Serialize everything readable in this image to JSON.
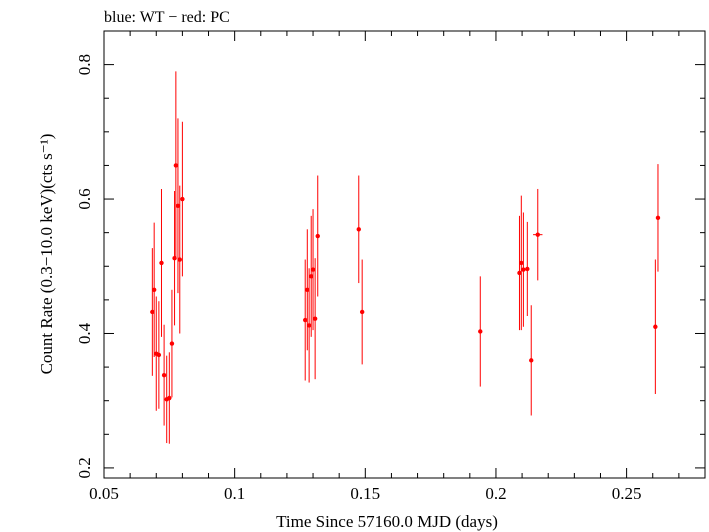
{
  "chart_data": {
    "type": "scatter",
    "title": "blue: WT − red: PC",
    "xlabel": "Time Since 57160.0 MJD (days)",
    "ylabel": "Count Rate (0.3−10.0 keV)(cts s⁻¹)",
    "xlim": [
      0.05,
      0.28
    ],
    "ylim": [
      0.185,
      0.85
    ],
    "xticks": [
      0.05,
      0.1,
      0.15,
      0.2,
      0.25
    ],
    "xtick_labels": [
      "0.05",
      "0.1",
      "0.15",
      "0.2",
      "0.25"
    ],
    "yticks": [
      0.2,
      0.4,
      0.6,
      0.8
    ],
    "ytick_labels": [
      "0.2",
      "0.4",
      "0.6",
      "0.8"
    ],
    "grid": false,
    "series": [
      {
        "color": "#ff0000",
        "points": [
          {
            "x": 0.0685,
            "y": 0.432,
            "yerr": 0.095
          },
          {
            "x": 0.0692,
            "y": 0.465,
            "yerr": 0.1
          },
          {
            "x": 0.07,
            "y": 0.37,
            "yerr": 0.085
          },
          {
            "x": 0.071,
            "y": 0.368,
            "yerr": 0.08
          },
          {
            "x": 0.072,
            "y": 0.505,
            "yerr": 0.11
          },
          {
            "x": 0.073,
            "y": 0.338,
            "yerr": 0.075
          },
          {
            "x": 0.074,
            "y": 0.302,
            "yerr": 0.065
          },
          {
            "x": 0.075,
            "y": 0.304,
            "yerr": 0.068
          },
          {
            "x": 0.076,
            "y": 0.385,
            "yerr": 0.08
          },
          {
            "x": 0.077,
            "y": 0.512,
            "yerr": 0.1
          },
          {
            "x": 0.0775,
            "y": 0.65,
            "yerr": 0.14
          },
          {
            "x": 0.0783,
            "y": 0.59,
            "yerr": 0.13
          },
          {
            "x": 0.079,
            "y": 0.51,
            "yerr": 0.11
          },
          {
            "x": 0.08,
            "y": 0.6,
            "yerr": 0.115
          },
          {
            "x": 0.127,
            "y": 0.42,
            "yerr": 0.09
          },
          {
            "x": 0.1278,
            "y": 0.465,
            "yerr": 0.09
          },
          {
            "x": 0.1285,
            "y": 0.412,
            "yerr": 0.085
          },
          {
            "x": 0.1293,
            "y": 0.485,
            "yerr": 0.09
          },
          {
            "x": 0.13,
            "y": 0.495,
            "yerr": 0.09
          },
          {
            "x": 0.1308,
            "y": 0.422,
            "yerr": 0.09
          },
          {
            "x": 0.1318,
            "y": 0.545,
            "yerr": 0.09
          },
          {
            "x": 0.1475,
            "y": 0.555,
            "yerr": 0.08
          },
          {
            "x": 0.1488,
            "y": 0.432,
            "yerr": 0.078
          },
          {
            "x": 0.194,
            "y": 0.403,
            "yerr": 0.082
          },
          {
            "x": 0.209,
            "y": 0.49,
            "yerr": 0.085
          },
          {
            "x": 0.2097,
            "y": 0.505,
            "yerr": 0.1
          },
          {
            "x": 0.2105,
            "y": 0.495,
            "yerr": 0.085
          },
          {
            "x": 0.212,
            "y": 0.496,
            "yerr": 0.07
          },
          {
            "x": 0.2135,
            "y": 0.36,
            "yerr": 0.082
          },
          {
            "x": 0.216,
            "y": 0.547,
            "yerr": 0.068,
            "xerr": 0.0018
          },
          {
            "x": 0.261,
            "y": 0.41,
            "yerr": 0.1
          },
          {
            "x": 0.262,
            "y": 0.572,
            "yerr": 0.08
          }
        ]
      }
    ]
  }
}
